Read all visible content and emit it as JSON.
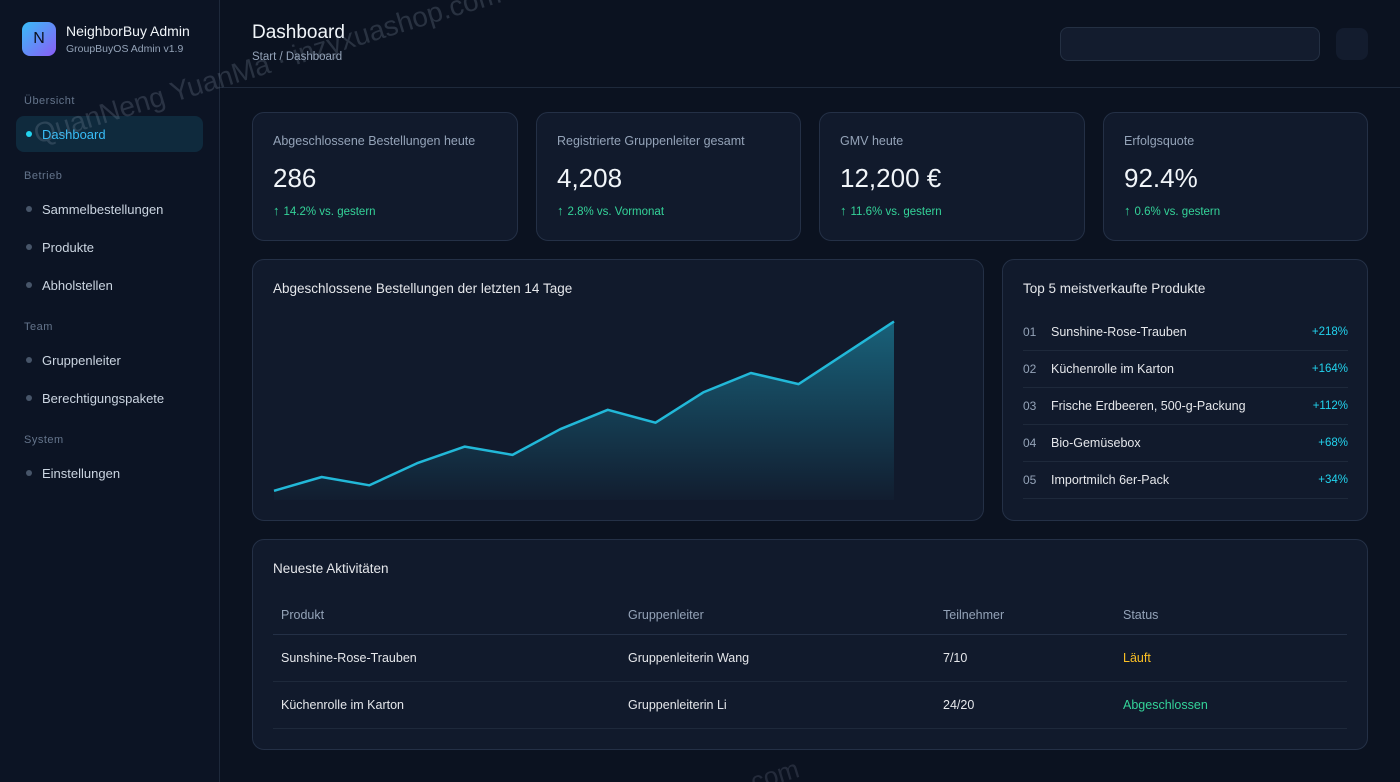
{
  "brand": {
    "logo_letter": "N",
    "name": "NeighborBuy Admin",
    "subtitle": "GroupBuyOS Admin v1.9"
  },
  "sidebar": {
    "sections": [
      "Übersicht",
      "Betrieb",
      "Team",
      "System"
    ],
    "items": [
      {
        "label": "Dashboard",
        "active": true
      },
      {
        "label": "Sammelbestellungen"
      },
      {
        "label": "Produkte"
      },
      {
        "label": "Abholstellen"
      },
      {
        "label": "Gruppenleiter"
      },
      {
        "label": "Berechtigungspakete"
      },
      {
        "label": "Einstellungen"
      }
    ]
  },
  "header": {
    "title": "Dashboard",
    "breadcrumb": "Start / Dashboard"
  },
  "stats": [
    {
      "label": "Abgeschlossene Bestellungen heute",
      "value": "286",
      "delta": "14.2% vs. gestern"
    },
    {
      "label": "Registrierte Gruppenleiter gesamt",
      "value": "4,208",
      "delta": "2.8% vs. Vormonat"
    },
    {
      "label": "GMV heute",
      "value": "12,200 €",
      "delta": "11.6% vs. gestern"
    },
    {
      "label": "Erfolgsquote",
      "value": "92.4%",
      "delta": "0.6% vs. gestern"
    }
  ],
  "chart_data": {
    "type": "area",
    "title": "Abgeschlossene Bestellungen der letzten 14 Tage",
    "x": [
      1,
      2,
      3,
      4,
      5,
      6,
      7,
      8,
      9,
      10,
      11,
      12,
      13,
      14
    ],
    "values": [
      10,
      25,
      16,
      40,
      58,
      49,
      77,
      98,
      84,
      117,
      138,
      126,
      160,
      194
    ],
    "ylim": [
      0,
      200
    ],
    "grid": false,
    "color": "#22b8d8"
  },
  "top_products": {
    "title": "Top 5 meistverkaufte Produkte",
    "items": [
      {
        "rank": "01",
        "name": "Sunshine-Rose-Trauben",
        "growth": "+218%"
      },
      {
        "rank": "02",
        "name": "Küchenrolle im Karton",
        "growth": "+164%"
      },
      {
        "rank": "03",
        "name": "Frische Erdbeeren, 500-g-Packung",
        "growth": "+112%"
      },
      {
        "rank": "04",
        "name": "Bio-Gemüsebox",
        "growth": "+68%"
      },
      {
        "rank": "05",
        "name": "Importmilch 6er-Pack",
        "growth": "+34%"
      }
    ]
  },
  "activities": {
    "title": "Neueste Aktivitäten",
    "columns": [
      "Produkt",
      "Gruppenleiter",
      "Teilnehmer",
      "Status"
    ],
    "rows": [
      {
        "product": "Sunshine-Rose-Trauben",
        "leader": "Gruppenleiterin Wang",
        "participants": "7/10",
        "status": "Läuft",
        "status_color": "#fbbf24"
      },
      {
        "product": "Küchenrolle im Karton",
        "leader": "Gruppenleiterin Li",
        "participants": "24/20",
        "status": "Abgeschlossen",
        "status_color": "#34d399"
      }
    ]
  },
  "watermark": {
    "text": "QuanNeng YuanMa · inzyxuashop.com",
    "text2": ".com"
  }
}
